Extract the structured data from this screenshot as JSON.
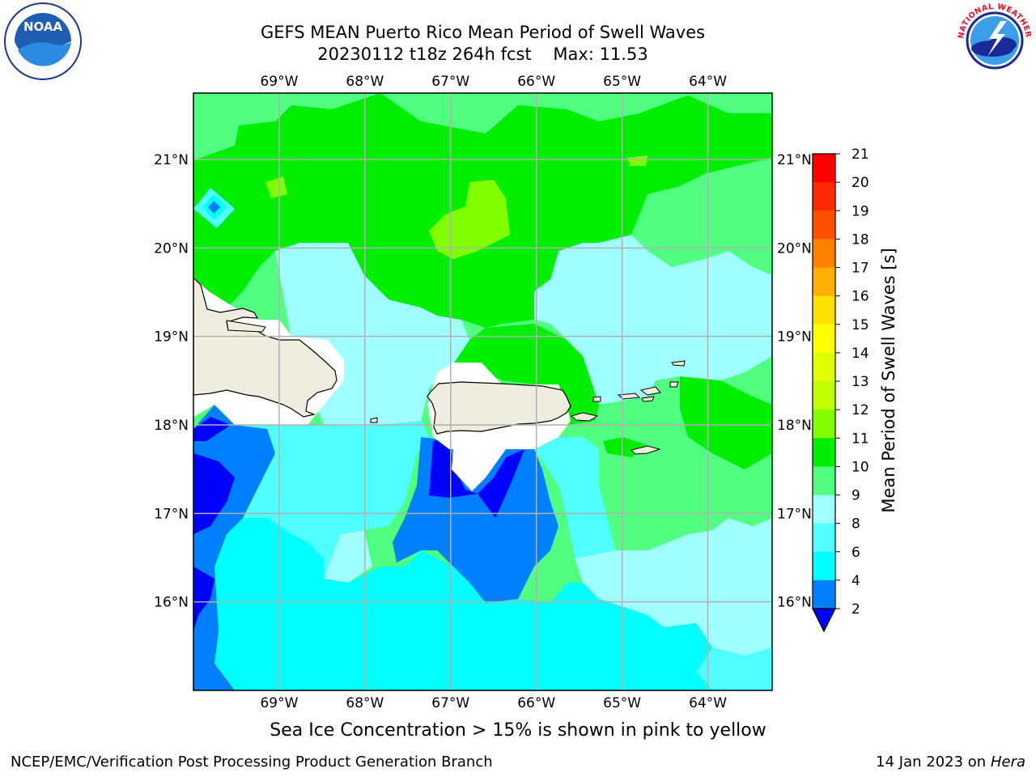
{
  "title": {
    "line1": "GEFS MEAN Puerto Rico Mean Period of Swell Waves",
    "line2_left": "20230112 t18z 264h fcst",
    "line2_right": "Max: 11.53"
  },
  "map": {
    "lon_labels": [
      "69°W",
      "68°W",
      "67°W",
      "66°W",
      "65°W",
      "64°W"
    ],
    "lat_labels": [
      "21°N",
      "20°N",
      "19°N",
      "18°N",
      "17°N",
      "16°N"
    ],
    "lon_range": [
      -70.0,
      -63.25
    ],
    "lat_range": [
      15.0,
      21.75
    ]
  },
  "colorbar": {
    "label": "Mean Period of Swell Waves [s]",
    "ticks": [
      "21",
      "20",
      "19",
      "18",
      "17",
      "16",
      "15",
      "14",
      "13",
      "12",
      "11",
      "10",
      "9",
      "8",
      "6",
      "4",
      "2"
    ],
    "bins": [
      {
        "value": "20",
        "color": "#ff0000"
      },
      {
        "value": "19",
        "color": "#ff2800"
      },
      {
        "value": "18",
        "color": "#ff5000"
      },
      {
        "value": "17",
        "color": "#ff8000"
      },
      {
        "value": "16",
        "color": "#ffb000"
      },
      {
        "value": "15",
        "color": "#ffe000"
      },
      {
        "value": "14",
        "color": "#ffff00"
      },
      {
        "value": "13",
        "color": "#e0ff00"
      },
      {
        "value": "12",
        "color": "#c0ff00"
      },
      {
        "value": "11",
        "color": "#80ff00"
      },
      {
        "value": "10",
        "color": "#00ee00"
      },
      {
        "value": "9",
        "color": "#50ff80"
      },
      {
        "value": "8",
        "color": "#a0ffff"
      },
      {
        "value": "6",
        "color": "#50ffff"
      },
      {
        "value": "4",
        "color": "#00ffff"
      },
      {
        "value": "2",
        "color": "#0080ff"
      }
    ],
    "under_color": "#0000ff"
  },
  "colors": {
    "land": "#efedde",
    "grid": "#b0b0b0",
    "blank": "#ffffff"
  },
  "note": "Sea Ice Concentration > 15% is shown in pink to yellow",
  "footer": {
    "left": "NCEP/EMC/Verification Post Processing Product Generation Branch",
    "right_prefix": "14 Jan 2023 on ",
    "right_host": "Hera"
  },
  "logos": {
    "noaa_text": "NOAA",
    "nws_text": "NATIONAL WEATHER SERVICE"
  }
}
